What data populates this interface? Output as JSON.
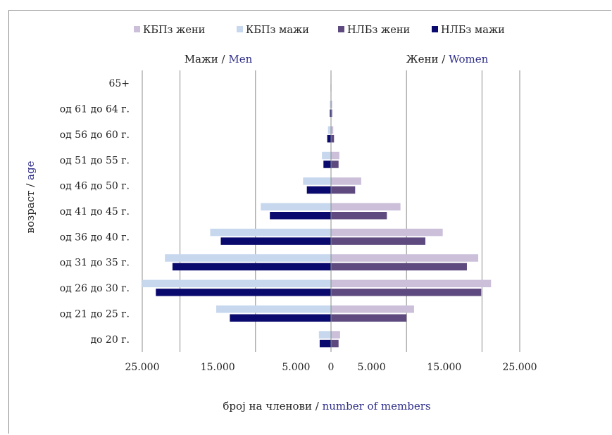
{
  "chart_data": {
    "type": "bar",
    "orientation": "horizontal",
    "layout": "population-pyramid",
    "legend_placement": "top",
    "grid": "vertical",
    "categories": [
      "до 20 г.",
      "од 21 до 25 г.",
      "од 26 до 30 г.",
      "од 31 до 35 г.",
      "од 36 до 40 г.",
      "од 41 до 45 г.",
      "од 46 до 50 г.",
      "од 51 до 55 г.",
      "од 56 до 60 г.",
      "од 61 до 64 г.",
      "65+"
    ],
    "series": [
      {
        "name": "КБПз жени",
        "side": "women",
        "color": "#cbbfd9",
        "values": [
          1200,
          11000,
          21200,
          19500,
          14800,
          9200,
          4000,
          1100,
          300,
          150,
          50
        ]
      },
      {
        "name": "КБПз мажи",
        "side": "men",
        "color": "#c6d7ee",
        "values": [
          1600,
          15200,
          25000,
          22000,
          16000,
          9300,
          3700,
          1200,
          400,
          150,
          50
        ]
      },
      {
        "name": "НЛБз жени",
        "side": "women",
        "color": "#5e4a7e",
        "values": [
          1000,
          10000,
          19900,
          18000,
          12500,
          7400,
          3200,
          1000,
          400,
          150,
          50
        ]
      },
      {
        "name": "НЛБз мажи",
        "side": "men",
        "color": "#0a0a6e",
        "values": [
          1500,
          13400,
          23200,
          21000,
          14600,
          8100,
          3200,
          1000,
          500,
          150,
          50
        ]
      }
    ],
    "xlim": [
      -25000,
      25000
    ],
    "x_ticks": [
      -25000,
      -15000,
      -5000,
      0,
      5000,
      15000,
      25000
    ],
    "x_tick_labels": [
      "25.000",
      "15.000",
      "5.000",
      "0",
      "5.000",
      "15.000",
      "25.000"
    ],
    "men_label": {
      "local": "Мажи",
      "sep": " / ",
      "en": "Men"
    },
    "women_label": {
      "local": "Жени",
      "sep": " / ",
      "en": "Women"
    },
    "xlabel": {
      "local": "број на членови",
      "sep": " / ",
      "en": "number of members"
    },
    "ylabel": {
      "local": "возраст",
      "sep": " / ",
      "en": "age"
    },
    "colors": {
      "english_text": "#2e2e8a",
      "grid": "#8c8c8c",
      "text": "#222222"
    }
  }
}
